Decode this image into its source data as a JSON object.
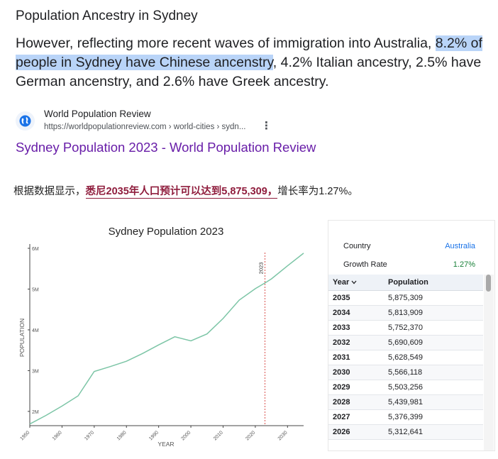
{
  "search_result": {
    "heading": "Population Ancestry in Sydney",
    "snippet_pre": "However, reflecting more recent waves of immigration into Australia, ",
    "snippet_highlight": "8.2% of people in Sydney have Chinese ancenstry",
    "snippet_post": ", 4.2% Italian ancestry, 2.5% have German ancenstry, and 2.6% have Greek ancestry.",
    "favicon": "globe-icon",
    "site_name": "World Population Review",
    "site_url": "https://worldpopulationreview.com › world-cities › sydn...",
    "more_icon": "more-vert-icon",
    "link_title": "Sydney Population 2023 - World Population Review"
  },
  "caption": {
    "pre": "根据数据显示，",
    "emphasis": "悉尼2035年人口预计可以达到5,875,309，",
    "post": "增长率为1.27%。"
  },
  "chart_data": {
    "type": "line",
    "title": "Sydney Population 2023",
    "xlabel": "YEAR",
    "ylabel": "POPULATION",
    "xlim": [
      1950,
      2035
    ],
    "ylim": [
      1.65,
      6.0
    ],
    "x_ticks": [
      "1950",
      "1960",
      "1970",
      "1980",
      "1990",
      "2000",
      "2010",
      "2020",
      "2030"
    ],
    "x_tick_values": [
      1950,
      1960,
      1970,
      1980,
      1990,
      2000,
      2010,
      2020,
      2030
    ],
    "y_ticks": [
      "2M",
      "3M",
      "4M",
      "5M",
      "6M"
    ],
    "y_tick_values": [
      2,
      3,
      4,
      5,
      6
    ],
    "marker_label": "2023",
    "marker_x": 2023,
    "line_color": "#7cc5a6",
    "marker_color": "#d9534f",
    "series": [
      {
        "x": [
          1950,
          1955,
          1960,
          1965,
          1970,
          1975,
          1980,
          1985,
          1990,
          1995,
          2000,
          2005,
          2010,
          2015,
          2020,
          2023,
          2025,
          2030,
          2035
        ],
        "values": [
          1.69,
          1.9,
          2.13,
          2.38,
          2.98,
          3.1,
          3.23,
          3.42,
          3.63,
          3.83,
          3.73,
          3.9,
          4.28,
          4.73,
          5.01,
          5.15,
          5.25,
          5.57,
          5.88
        ]
      }
    ]
  },
  "panel": {
    "country_label": "Country",
    "country_value": "Australia",
    "growth_label": "Growth Rate",
    "growth_value": "1.27%",
    "col_year": "Year",
    "sort_icon": "chevron-down-icon",
    "col_pop": "Population",
    "rows": [
      {
        "year": "2035",
        "pop": "5,875,309"
      },
      {
        "year": "2034",
        "pop": "5,813,909"
      },
      {
        "year": "2033",
        "pop": "5,752,370"
      },
      {
        "year": "2032",
        "pop": "5,690,609"
      },
      {
        "year": "2031",
        "pop": "5,628,549"
      },
      {
        "year": "2030",
        "pop": "5,566,118"
      },
      {
        "year": "2029",
        "pop": "5,503,256"
      },
      {
        "year": "2028",
        "pop": "5,439,981"
      },
      {
        "year": "2027",
        "pop": "5,376,399"
      },
      {
        "year": "2026",
        "pop": "5,312,641"
      }
    ]
  }
}
